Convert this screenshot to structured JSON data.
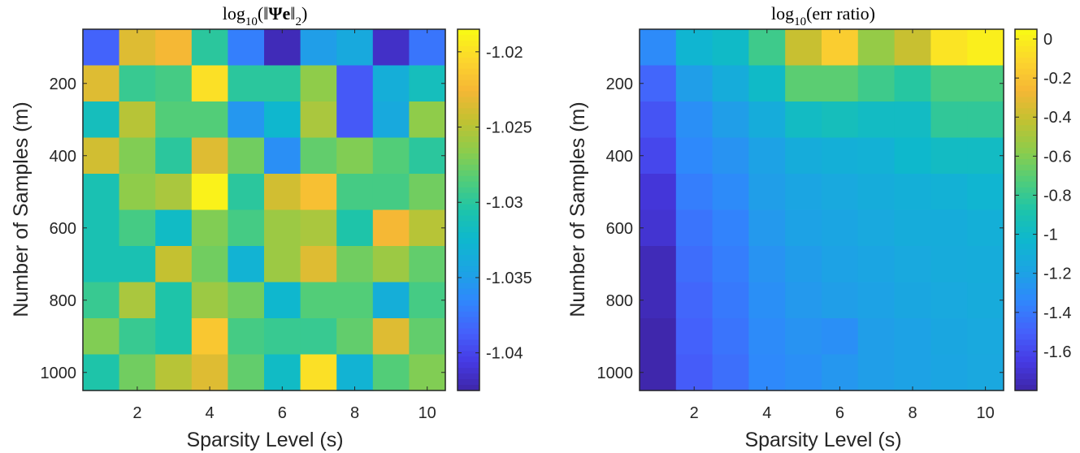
{
  "chart_data": [
    {
      "type": "heatmap",
      "title": "log10(||Ψe||2)",
      "title_parts": {
        "log": "log",
        "sub": "10",
        "pre": "(‖",
        "bold": "Ψe",
        "post": "‖",
        "sub2": "2",
        "close": ")"
      },
      "xlabel": "Sparsity Level (s)",
      "ylabel": "Number of Samples (m)",
      "x": [
        1,
        2,
        3,
        4,
        5,
        6,
        7,
        8,
        9,
        10
      ],
      "y": [
        100,
        200,
        300,
        400,
        500,
        600,
        700,
        800,
        900,
        1000
      ],
      "xticks": [
        2,
        4,
        6,
        8,
        10
      ],
      "xtick_labels": [
        "2",
        "4",
        "6",
        "8",
        "10"
      ],
      "yticks": [
        200,
        400,
        600,
        800,
        1000
      ],
      "ytick_labels": [
        "200",
        "400",
        "600",
        "800",
        "1000"
      ],
      "clim": [
        -1.0425,
        -1.0185
      ],
      "colorbar_ticks": [
        -1.02,
        -1.025,
        -1.03,
        -1.035,
        -1.04
      ],
      "colorbar_labels": [
        "-1.02",
        "-1.025",
        "-1.03",
        "-1.035",
        "-1.04"
      ],
      "values": [
        [
          -1.0385,
          -1.0235,
          -1.0225,
          -1.03,
          -1.037,
          -1.042,
          -1.035,
          -1.034,
          -1.0415,
          -1.0375
        ],
        [
          -1.0235,
          -1.0295,
          -1.029,
          -1.02,
          -1.03,
          -1.03,
          -1.0265,
          -1.039,
          -1.0335,
          -1.0315
        ],
        [
          -1.0315,
          -1.025,
          -1.0285,
          -1.0285,
          -1.0355,
          -1.0325,
          -1.0255,
          -1.039,
          -1.034,
          -1.0265
        ],
        [
          -1.024,
          -1.027,
          -1.03,
          -1.0235,
          -1.0275,
          -1.036,
          -1.028,
          -1.027,
          -1.0285,
          -1.03
        ],
        [
          -1.031,
          -1.0265,
          -1.0255,
          -1.019,
          -1.03,
          -1.024,
          -1.022,
          -1.029,
          -1.029,
          -1.0275
        ],
        [
          -1.031,
          -1.029,
          -1.032,
          -1.027,
          -1.029,
          -1.026,
          -1.0255,
          -1.0305,
          -1.0225,
          -1.025
        ],
        [
          -1.031,
          -1.031,
          -1.0245,
          -1.0275,
          -1.033,
          -1.026,
          -1.0235,
          -1.0275,
          -1.026,
          -1.028
        ],
        [
          -1.0295,
          -1.0255,
          -1.0305,
          -1.026,
          -1.0275,
          -1.0325,
          -1.0285,
          -1.0285,
          -1.0335,
          -1.029
        ],
        [
          -1.027,
          -1.0295,
          -1.0305,
          -1.0215,
          -1.029,
          -1.0295,
          -1.0295,
          -1.028,
          -1.0235,
          -1.028
        ],
        [
          -1.0305,
          -1.0275,
          -1.025,
          -1.0235,
          -1.028,
          -1.032,
          -1.02,
          -1.033,
          -1.0285,
          -1.027
        ]
      ]
    },
    {
      "type": "heatmap",
      "title": "log10(err ratio)",
      "title_parts": {
        "log": "log",
        "sub": "10",
        "rest": "(err ratio)"
      },
      "xlabel": "Sparsity Level (s)",
      "ylabel": "Number of Samples (m)",
      "x": [
        1,
        2,
        3,
        4,
        5,
        6,
        7,
        8,
        9,
        10
      ],
      "y": [
        100,
        200,
        300,
        400,
        500,
        600,
        700,
        800,
        900,
        1000
      ],
      "xticks": [
        2,
        4,
        6,
        8,
        10
      ],
      "xtick_labels": [
        "2",
        "4",
        "6",
        "8",
        "10"
      ],
      "yticks": [
        200,
        400,
        600,
        800,
        1000
      ],
      "ytick_labels": [
        "200",
        "400",
        "600",
        "800",
        "1000"
      ],
      "clim": [
        -1.8,
        0.05
      ],
      "colorbar_ticks": [
        0,
        -0.2,
        -0.4,
        -0.6,
        -0.8,
        -1,
        -1.2,
        -1.4,
        -1.6
      ],
      "colorbar_labels": [
        "0",
        "-0.2",
        "-0.4",
        "-0.6",
        "-0.8",
        "-1",
        "-1.2",
        "-1.4",
        "-1.6"
      ],
      "values": [
        [
          -1.32,
          -1.05,
          -1.0,
          -0.78,
          -0.4,
          -0.15,
          -0.55,
          -0.4,
          -0.05,
          0.0
        ],
        [
          -1.48,
          -1.22,
          -1.12,
          -1.0,
          -0.7,
          -0.7,
          -0.78,
          -0.85,
          -0.75,
          -0.75
        ],
        [
          -1.55,
          -1.3,
          -1.22,
          -1.12,
          -0.98,
          -0.95,
          -0.98,
          -0.98,
          -0.82,
          -0.82
        ],
        [
          -1.6,
          -1.33,
          -1.28,
          -1.2,
          -1.12,
          -1.1,
          -1.08,
          -1.02,
          -0.98,
          -0.98
        ],
        [
          -1.68,
          -1.38,
          -1.32,
          -1.22,
          -1.18,
          -1.15,
          -1.12,
          -1.1,
          -1.08,
          -1.05
        ],
        [
          -1.7,
          -1.42,
          -1.36,
          -1.25,
          -1.2,
          -1.18,
          -1.15,
          -1.12,
          -1.12,
          -1.1
        ],
        [
          -1.76,
          -1.45,
          -1.38,
          -1.28,
          -1.23,
          -1.2,
          -1.18,
          -1.15,
          -1.13,
          -1.12
        ],
        [
          -1.76,
          -1.48,
          -1.4,
          -1.3,
          -1.25,
          -1.22,
          -1.2,
          -1.17,
          -1.15,
          -1.13
        ],
        [
          -1.79,
          -1.5,
          -1.42,
          -1.32,
          -1.28,
          -1.3,
          -1.22,
          -1.2,
          -1.17,
          -1.15
        ],
        [
          -1.79,
          -1.52,
          -1.44,
          -1.33,
          -1.3,
          -1.26,
          -1.22,
          -1.2,
          -1.18,
          -1.16
        ]
      ]
    }
  ]
}
